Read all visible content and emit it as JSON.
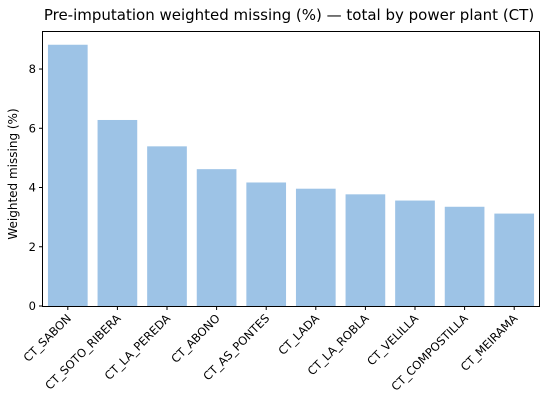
{
  "chart_data": {
    "type": "bar",
    "title": "Pre-imputation weighted missing (%) — total by power plant (CT)",
    "xlabel": "",
    "ylabel": "Weighted missing (%)",
    "ylim": [
      0,
      9.25
    ],
    "yticks": [
      0,
      2,
      4,
      6,
      8
    ],
    "grid": false,
    "categories": [
      "CT_SABON",
      "CT_SOTO_RIBERA",
      "CT_LA_PEREDA",
      "CT_ABONO",
      "CT_AS_PONTES",
      "CT_LADA",
      "CT_LA_ROBLA",
      "CT_VELILLA",
      "CT_COMPOSTILLA",
      "CT_MEIRAMA"
    ],
    "values": [
      8.82,
      6.28,
      5.39,
      4.62,
      4.17,
      3.96,
      3.77,
      3.56,
      3.35,
      3.12
    ],
    "bar_color": "#9dc3e6"
  }
}
